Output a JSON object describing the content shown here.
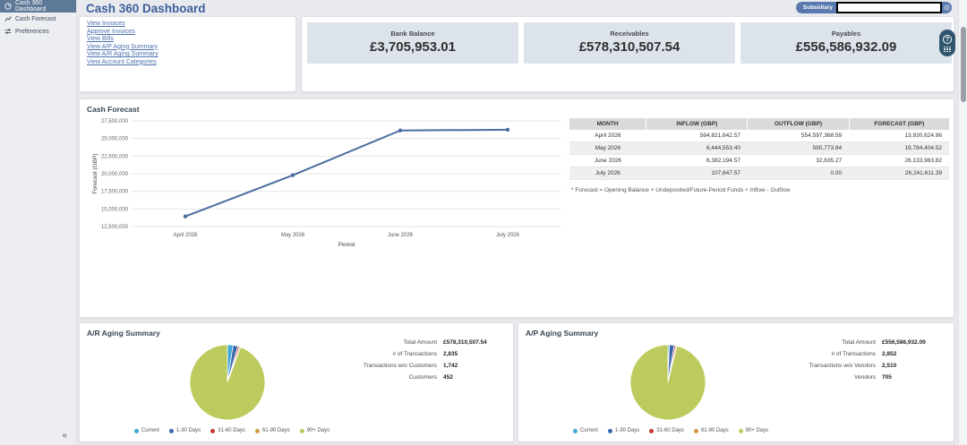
{
  "app": {
    "collapse_icon": "«"
  },
  "sidebar": {
    "items": [
      {
        "label": "Cash 360 Dashboard",
        "icon": "gauge-icon",
        "active": true
      },
      {
        "label": "Cash Forecast",
        "icon": "line-chart-icon",
        "active": false
      },
      {
        "label": "Preferences",
        "icon": "sliders-icon",
        "active": false
      }
    ]
  },
  "header": {
    "title": "Cash 360 Dashboard",
    "subsidiary": {
      "label": "Subsidiary",
      "value_redacted": true
    }
  },
  "shortcuts": {
    "links": [
      "View Invoices",
      "Approve Invoices",
      "View Bills",
      "View A/P Aging Summary",
      "View A/R Aging Summary",
      "View Account Categories"
    ]
  },
  "kpis": {
    "cards": [
      {
        "label": "Bank Balance",
        "value": "£3,705,953.01"
      },
      {
        "label": "Receivables",
        "value": "£578,310,507.54"
      },
      {
        "label": "Payables",
        "value": "£556,586,932.09"
      }
    ]
  },
  "forecast": {
    "title": "Cash Forecast",
    "footnote": "* Forecast = Opening Balance + Undeposited/Future-Period Funds + Inflow - Outflow",
    "table": {
      "headers": [
        "MONTH",
        "INFLOW (GBP)",
        "OUTFLOW (GBP)",
        "FORECAST (GBP)"
      ],
      "rows": [
        [
          "April 2026",
          "564,821,642.57",
          "554,597,368.59",
          "13,930,624.96"
        ],
        [
          "May 2026",
          "6,444,553.40",
          "590,773.84",
          "19,784,404.52"
        ],
        [
          "June 2026",
          "6,382,194.57",
          "32,635.27",
          "26,133,963.82"
        ],
        [
          "July 2026",
          "107,647.57",
          "0.00",
          "26,241,611.39"
        ]
      ]
    }
  },
  "ar_aging": {
    "title": "A/R Aging Summary",
    "stats": [
      {
        "label": "Total Amount",
        "value": "£578,310,507.54"
      },
      {
        "label": "# of Transactions",
        "value": "2,835"
      },
      {
        "label": "Transactions w/o Customers",
        "value": "1,742"
      },
      {
        "label": "Customers",
        "value": "452"
      }
    ]
  },
  "ap_aging": {
    "title": "A/P Aging Summary",
    "stats": [
      {
        "label": "Total Amount",
        "value": "£556,586,932.09"
      },
      {
        "label": "# of Transactions",
        "value": "2,852"
      },
      {
        "label": "Transactions w/o Vendors",
        "value": "2,510"
      },
      {
        "label": "Vendors",
        "value": "705"
      }
    ]
  },
  "legend": {
    "items": [
      {
        "label": "Current",
        "color": "#3FA8D4"
      },
      {
        "label": "1-30 Days",
        "color": "#3A68B0"
      },
      {
        "label": "31-60 Days",
        "color": "#C23934"
      },
      {
        "label": "61-90 Days",
        "color": "#D29A43"
      },
      {
        "label": "90+ Days",
        "color": "#BDCB5E"
      }
    ]
  },
  "help_widget": {
    "help_icon": "?"
  },
  "colors": {
    "page_bg": "#e8eaee",
    "sidebar_active_bg": "#5e7897",
    "title_blue": "#3f5e9c",
    "link_blue": "#4c70ad",
    "kpi_card_bg": "#dde3eb",
    "line_color": "#4A6D9E",
    "table_header_bg": "#d8dadc"
  },
  "chart_data": [
    {
      "type": "line",
      "title": "Cash Forecast",
      "x": [
        "April 2026",
        "May 2026",
        "June 2026",
        "July 2026"
      ],
      "series": [
        {
          "name": "Forecast",
          "values": [
            13930624.96,
            19784404.52,
            26133963.82,
            26241611.39
          ]
        }
      ],
      "xlabel": "Period",
      "ylabel": "Forecast (GBP)",
      "ylim": [
        12500000,
        27500000
      ],
      "ytick_step": 2500000,
      "grid": true,
      "line_color": "#4A6D9E"
    },
    {
      "type": "pie",
      "title": "A/R Aging Summary",
      "labels": [
        "Current",
        "1-30 Days",
        "31-60 Days",
        "61-90 Days",
        "90+ Days"
      ],
      "values": [
        2.4,
        2.1,
        0.7,
        0.5,
        94.3
      ],
      "value_unit": "percent (estimated from pie)",
      "colors": [
        "#3FA8D4",
        "#3A68B0",
        "#C23934",
        "#D29A43",
        "#BDCB5E"
      ],
      "legend_position": "bottom"
    },
    {
      "type": "pie",
      "title": "A/P Aging Summary",
      "labels": [
        "Current",
        "1-30 Days",
        "31-60 Days",
        "61-90 Days",
        "90+ Days"
      ],
      "values": [
        0.6,
        2.1,
        0.7,
        0.4,
        96.2
      ],
      "value_unit": "percent (estimated from pie)",
      "colors": [
        "#3FA8D4",
        "#3A68B0",
        "#C23934",
        "#D29A43",
        "#BDCB5E"
      ],
      "legend_position": "bottom"
    }
  ]
}
